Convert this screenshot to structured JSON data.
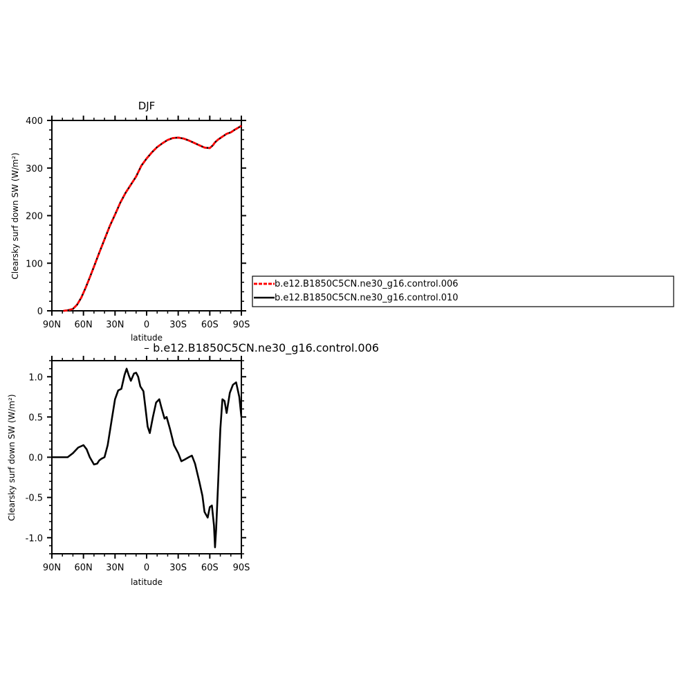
{
  "figure": {
    "legend_entries": [
      {
        "label": "b.e12.B1850C5CN.ne30_g16.control.006",
        "color": "#ff0000",
        "dashed": true
      },
      {
        "label": "b.e12.B1850C5CN.ne30_g16.control.010",
        "color": "#000000",
        "dashed": false
      }
    ],
    "difference_label": "– b.e12.B1850C5CN.ne30_g16.control.006"
  },
  "chart_data": [
    {
      "type": "line",
      "title": "DJF",
      "xlabel": "latitude",
      "ylabel": "Clearsky surf down SW (W/m²)",
      "xlim": [
        90,
        -90
      ],
      "ylim": [
        0,
        400
      ],
      "x_ticks": [
        90,
        60,
        30,
        0,
        -30,
        -60,
        -90
      ],
      "x_tick_labels": [
        "90N",
        "60N",
        "30N",
        "0",
        "30S",
        "60S",
        "90S"
      ],
      "y_ticks": [
        0,
        100,
        200,
        300,
        400
      ],
      "y_tick_labels": [
        "0",
        "100",
        "200",
        "300",
        "400"
      ],
      "x": [
        79,
        75,
        70,
        66,
        62,
        58,
        54,
        50,
        45,
        40,
        35,
        30,
        25,
        20,
        15,
        10,
        5,
        0,
        -5,
        -10,
        -15,
        -20,
        -25,
        -30,
        -35,
        -40,
        -45,
        -50,
        -55,
        -60,
        -63,
        -65,
        -68,
        -72,
        -76,
        -80,
        -84,
        -88,
        -90
      ],
      "series": [
        {
          "name": "b.e12.B1850C5CN.ne30_g16.control.006",
          "color": "#ff0000",
          "dashed": true,
          "values": [
            0,
            1,
            4,
            13,
            28,
            48,
            70,
            93,
            122,
            150,
            178,
            202,
            227,
            248,
            265,
            282,
            305,
            320,
            333,
            344,
            352,
            359,
            363,
            364,
            362,
            358,
            353,
            348,
            343,
            342,
            348,
            354,
            360,
            366,
            372,
            375,
            381,
            386,
            389
          ]
        },
        {
          "name": "b.e12.B1850C5CN.ne30_g16.control.010",
          "color": "#000000",
          "dashed": false,
          "values": [
            0,
            1,
            4,
            13,
            28,
            48,
            70,
            93,
            122,
            150,
            178,
            202,
            227,
            248,
            265,
            282,
            305,
            320,
            333,
            344,
            352,
            359,
            363,
            364,
            362,
            358,
            353,
            348,
            343,
            342,
            348,
            354,
            360,
            366,
            372,
            375,
            381,
            386,
            389
          ]
        }
      ]
    },
    {
      "type": "line",
      "title": "",
      "xlabel": "latitude",
      "ylabel": "Clearsky surf down SW (W/m²)",
      "xlim": [
        90,
        -90
      ],
      "ylim": [
        -1.2,
        1.2
      ],
      "x_ticks": [
        90,
        60,
        30,
        0,
        -30,
        -60,
        -90
      ],
      "x_tick_labels": [
        "90N",
        "60N",
        "30N",
        "0",
        "30S",
        "60S",
        "90S"
      ],
      "y_ticks": [
        1.0,
        0.5,
        0.0,
        -0.5,
        -1.0
      ],
      "y_tick_labels": [
        "1.0",
        "0.5",
        "0.0",
        "-0.5",
        "-1.0"
      ],
      "x": [
        90,
        82,
        75,
        70,
        65,
        60,
        57,
        54,
        50,
        47,
        45,
        43,
        40,
        37,
        33,
        30,
        27,
        24,
        21,
        19,
        17,
        15,
        12,
        10,
        8,
        6,
        3,
        1,
        -1,
        -3,
        -6,
        -9,
        -12,
        -14,
        -17,
        -19,
        -22,
        -26,
        -30,
        -33,
        -36,
        -40,
        -43,
        -46,
        -50,
        -53,
        -55,
        -58,
        -60,
        -62,
        -64,
        -65,
        -66,
        -68,
        -70,
        -72,
        -74,
        -76,
        -79,
        -82,
        -85,
        -88,
        -90
      ],
      "series": [
        {
          "name": "",
          "color": "#000000",
          "values": [
            0.0,
            0.0,
            0.0,
            0.05,
            0.12,
            0.15,
            0.1,
            0.0,
            -0.09,
            -0.08,
            -0.04,
            -0.02,
            0.0,
            0.15,
            0.48,
            0.72,
            0.83,
            0.85,
            1.02,
            1.1,
            1.02,
            0.95,
            1.04,
            1.05,
            1.0,
            0.88,
            0.82,
            0.6,
            0.38,
            0.3,
            0.5,
            0.68,
            0.72,
            0.62,
            0.48,
            0.5,
            0.36,
            0.15,
            0.05,
            -0.05,
            -0.03,
            0.0,
            0.02,
            -0.08,
            -0.3,
            -0.48,
            -0.68,
            -0.75,
            -0.62,
            -0.6,
            -0.85,
            -1.12,
            -0.9,
            -0.3,
            0.35,
            0.72,
            0.7,
            0.55,
            0.8,
            0.9,
            0.93,
            0.75,
            0.5
          ]
        }
      ]
    }
  ]
}
